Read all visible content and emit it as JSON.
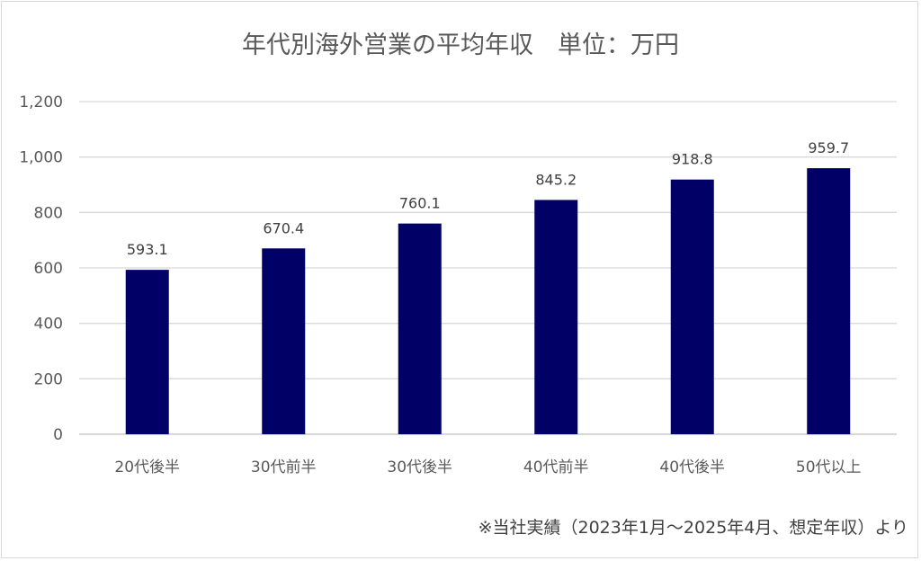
{
  "chart_data": {
    "type": "bar",
    "title": "年代別海外営業の平均年収　単位：万円",
    "categories": [
      "20代後半",
      "30代前半",
      "30代後半",
      "40代前半",
      "40代後半",
      "50代以上"
    ],
    "values": [
      593.1,
      670.4,
      760.1,
      845.2,
      918.8,
      959.7
    ],
    "value_labels": [
      "593.1",
      "670.4",
      "760.1",
      "845.2",
      "918.8",
      "959.7"
    ],
    "ylim": [
      0,
      1200
    ],
    "yticks": [
      0,
      200,
      400,
      600,
      800,
      1000,
      1200
    ],
    "ytick_labels": [
      "0",
      "200",
      "400",
      "600",
      "800",
      "1,000",
      "1,200"
    ],
    "grid": true,
    "bar_color": "#000066",
    "xlabel": "",
    "ylabel": "",
    "footnote": "※当社実績（2023年1月～2025年4月、想定年収）より"
  }
}
